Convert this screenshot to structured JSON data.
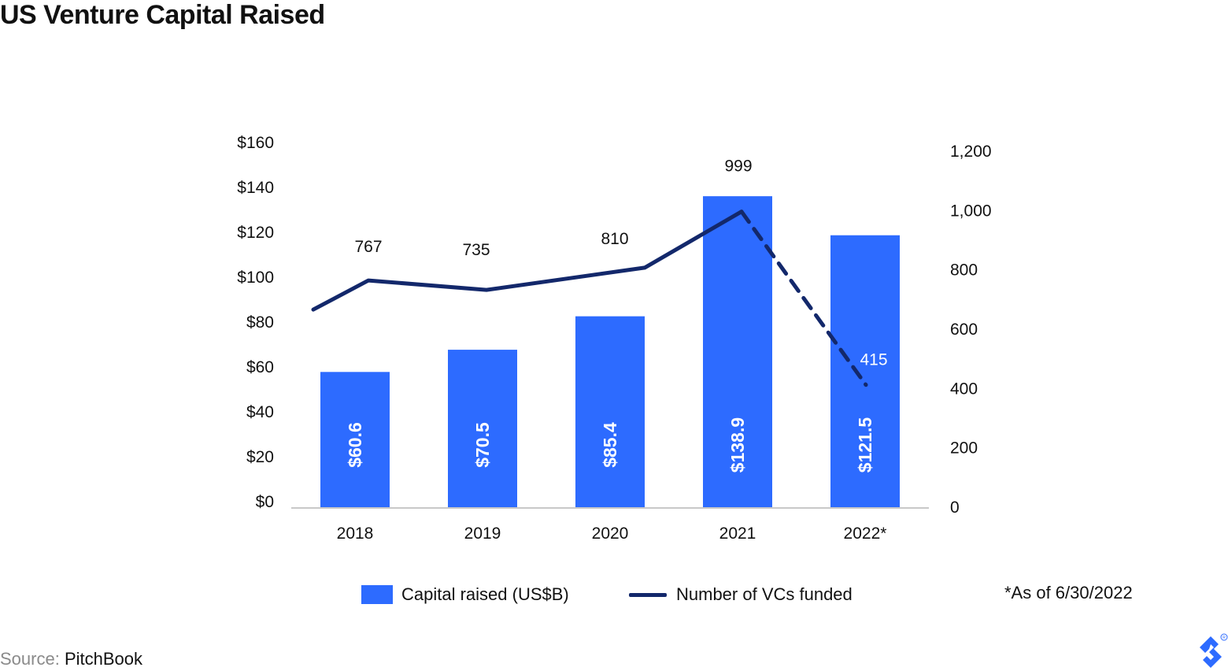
{
  "title": "US Venture Capital Raised",
  "chart_data": {
    "type": "bar",
    "categories": [
      "2018",
      "2019",
      "2020",
      "2021",
      "2022*"
    ],
    "series": [
      {
        "name": "Capital raised (US$B)",
        "type": "bar",
        "axis": "left",
        "values": [
          60.6,
          70.5,
          85.4,
          138.9,
          121.5
        ],
        "labels": [
          "$60.6",
          "$70.5",
          "$85.4",
          "$138.9",
          "$121.5"
        ],
        "color": "#2d6bff"
      },
      {
        "name": "Number of VCs funded",
        "type": "line",
        "axis": "right",
        "values": [
          767,
          735,
          810,
          999,
          415
        ],
        "labels": [
          "767",
          "735",
          "810",
          "999",
          "415"
        ],
        "dashed_last_segment": true,
        "color": "#13286b"
      }
    ],
    "ylim_left": [
      0,
      160
    ],
    "ylim_right": [
      0,
      1200
    ],
    "yticks_left": [
      "$0",
      "$20",
      "$40",
      "$60",
      "$80",
      "$100",
      "$120",
      "$140",
      "$160"
    ],
    "yticks_right": [
      "0",
      "200",
      "400",
      "600",
      "800",
      "1,000",
      "1,200"
    ],
    "grid": false,
    "legend_position": "bottom"
  },
  "note": "*As of 6/30/2022",
  "source": {
    "label": "Source:",
    "name": "PitchBook"
  },
  "colors": {
    "bar": "#2d6bff",
    "line": "#13286b",
    "text": "#111111",
    "source_label": "#8a8a8a"
  },
  "logo_icon": "toptal-logo"
}
